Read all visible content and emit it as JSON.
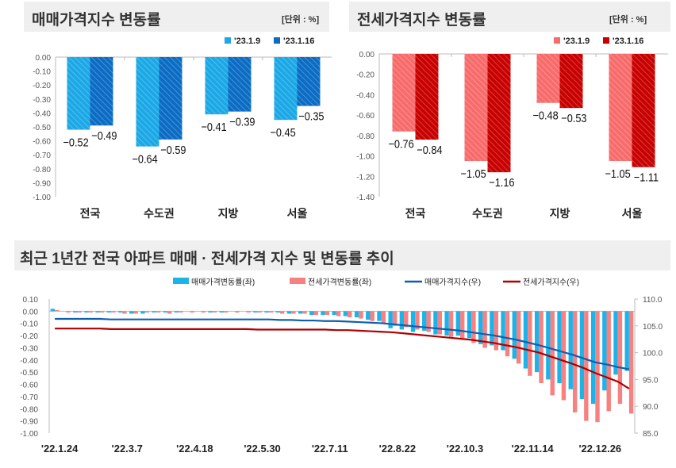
{
  "chart_data": [
    {
      "type": "bar",
      "title": "매매가격지수 변동률",
      "unit": "[단위 : %]",
      "categories": [
        "전국",
        "수도권",
        "지방",
        "서울"
      ],
      "series": [
        {
          "name": "'23.1.9",
          "values": [
            -0.52,
            -0.64,
            -0.41,
            -0.45
          ],
          "color": "#1ba8e6"
        },
        {
          "name": "'23.1.16",
          "values": [
            -0.49,
            -0.59,
            -0.39,
            -0.35
          ],
          "color": "#0b6cc4"
        }
      ],
      "ylim": [
        -1.0,
        0.0
      ],
      "yticks": [
        "0.00",
        "-0.10",
        "-0.20",
        "-0.30",
        "-0.40",
        "-0.50",
        "-0.60",
        "-0.70",
        "-0.80",
        "-0.90",
        "-1.00"
      ],
      "legend": "top-right"
    },
    {
      "type": "bar",
      "title": "전세가격지수 변동률",
      "unit": "[단위 : %]",
      "categories": [
        "전국",
        "수도권",
        "지방",
        "서울"
      ],
      "series": [
        {
          "name": "'23.1.9",
          "values": [
            -0.76,
            -1.05,
            -0.48,
            -1.05
          ],
          "color": "#f76b6b"
        },
        {
          "name": "'23.1.16",
          "values": [
            -0.84,
            -1.16,
            -0.53,
            -1.11
          ],
          "color": "#c80000"
        }
      ],
      "ylim": [
        -1.4,
        0.0
      ],
      "yticks": [
        "0.00",
        "-0.20",
        "-0.40",
        "-0.60",
        "-0.80",
        "-1.00",
        "-1.20",
        "-1.40"
      ],
      "legend": "top-right"
    },
    {
      "type": "bar+line",
      "title": "최근 1년간 전국 아파트 매매 · 전세가격 지수 및 변동률 추이",
      "xticks": [
        "'22.1.24",
        "'22.3.7",
        "'22.4.18",
        "'22.5.30",
        "'22.7.11",
        "'22.8.22",
        "'22.10.3",
        "'22.11.14",
        "'22.12.26"
      ],
      "ylim_left": [
        -1.0,
        0.1
      ],
      "yticks_left": [
        "0.10",
        "0.00",
        "-0.10",
        "-0.20",
        "-0.30",
        "-0.40",
        "-0.50",
        "-0.60",
        "-0.70",
        "-0.80",
        "-0.90",
        "-1.00"
      ],
      "ylim_right": [
        85,
        110
      ],
      "yticks_right": [
        "110.0",
        "105.0",
        "100.0",
        "95.0",
        "90.0",
        "85.0"
      ],
      "legend": "top",
      "series": [
        {
          "name": "매매가격변동률(좌)",
          "kind": "bar",
          "color": "#1bb4ea",
          "values": [
            0.02,
            0,
            -0.01,
            -0.01,
            -0.01,
            -0.01,
            -0.01,
            -0.02,
            -0.02,
            -0.01,
            -0.01,
            -0.01,
            0,
            0,
            -0.01,
            -0.01,
            0,
            0,
            -0.01,
            -0.01,
            -0.01,
            -0.02,
            -0.02,
            -0.03,
            -0.03,
            -0.03,
            -0.04,
            -0.05,
            -0.07,
            -0.08,
            -0.14,
            -0.15,
            -0.17,
            -0.16,
            -0.19,
            -0.2,
            -0.2,
            -0.22,
            -0.27,
            -0.28,
            -0.32,
            -0.39,
            -0.47,
            -0.5,
            -0.56,
            -0.59,
            -0.64,
            -0.72,
            -0.76,
            -0.65,
            -0.52,
            -0.49
          ]
        },
        {
          "name": "전세가격변동률(좌)",
          "kind": "bar",
          "color": "#f78080",
          "values": [
            0.01,
            -0.01,
            -0.01,
            -0.01,
            -0.01,
            -0.01,
            -0.02,
            -0.02,
            -0.01,
            -0.01,
            -0.02,
            -0.01,
            -0.01,
            -0.01,
            -0.01,
            -0.01,
            -0.01,
            -0.01,
            -0.01,
            -0.01,
            -0.02,
            -0.02,
            -0.02,
            -0.03,
            -0.03,
            -0.04,
            -0.05,
            -0.06,
            -0.08,
            -0.1,
            -0.12,
            -0.13,
            -0.15,
            -0.17,
            -0.19,
            -0.21,
            -0.22,
            -0.26,
            -0.3,
            -0.32,
            -0.37,
            -0.43,
            -0.53,
            -0.59,
            -0.69,
            -0.73,
            -0.83,
            -0.9,
            -0.91,
            -0.82,
            -0.76,
            -0.84
          ]
        },
        {
          "name": "매매가격지수(우)",
          "kind": "line",
          "color": "#0f5fb0",
          "values": [
            106.3,
            106.3,
            106.3,
            106.3,
            106.3,
            106.2,
            106.2,
            106.2,
            106.2,
            106.2,
            106.2,
            106.2,
            106.2,
            106.2,
            106.2,
            106.2,
            106.2,
            106.2,
            106.2,
            106.2,
            106.1,
            106.1,
            106.0,
            106.0,
            105.9,
            105.9,
            105.8,
            105.7,
            105.6,
            105.5,
            105.3,
            105.1,
            104.9,
            104.7,
            104.5,
            104.3,
            104.1,
            103.8,
            103.5,
            103.2,
            102.8,
            102.4,
            101.9,
            101.4,
            100.8,
            100.2,
            99.6,
            98.9,
            98.2,
            97.8,
            97.3,
            96.9
          ]
        },
        {
          "name": "전세가격지수(우)",
          "kind": "line",
          "color": "#b00000",
          "values": [
            104.5,
            104.5,
            104.5,
            104.5,
            104.5,
            104.4,
            104.4,
            104.4,
            104.4,
            104.4,
            104.4,
            104.4,
            104.4,
            104.4,
            104.4,
            104.4,
            104.4,
            104.4,
            104.3,
            104.3,
            104.3,
            104.3,
            104.3,
            104.3,
            104.3,
            104.2,
            104.2,
            104.1,
            104.0,
            103.9,
            103.8,
            103.6,
            103.4,
            103.2,
            103.0,
            102.8,
            102.6,
            102.4,
            102.1,
            101.8,
            101.4,
            101.0,
            100.5,
            100.0,
            99.3,
            98.6,
            97.9,
            97.1,
            96.2,
            95.4,
            94.6,
            93.3
          ]
        }
      ]
    }
  ]
}
